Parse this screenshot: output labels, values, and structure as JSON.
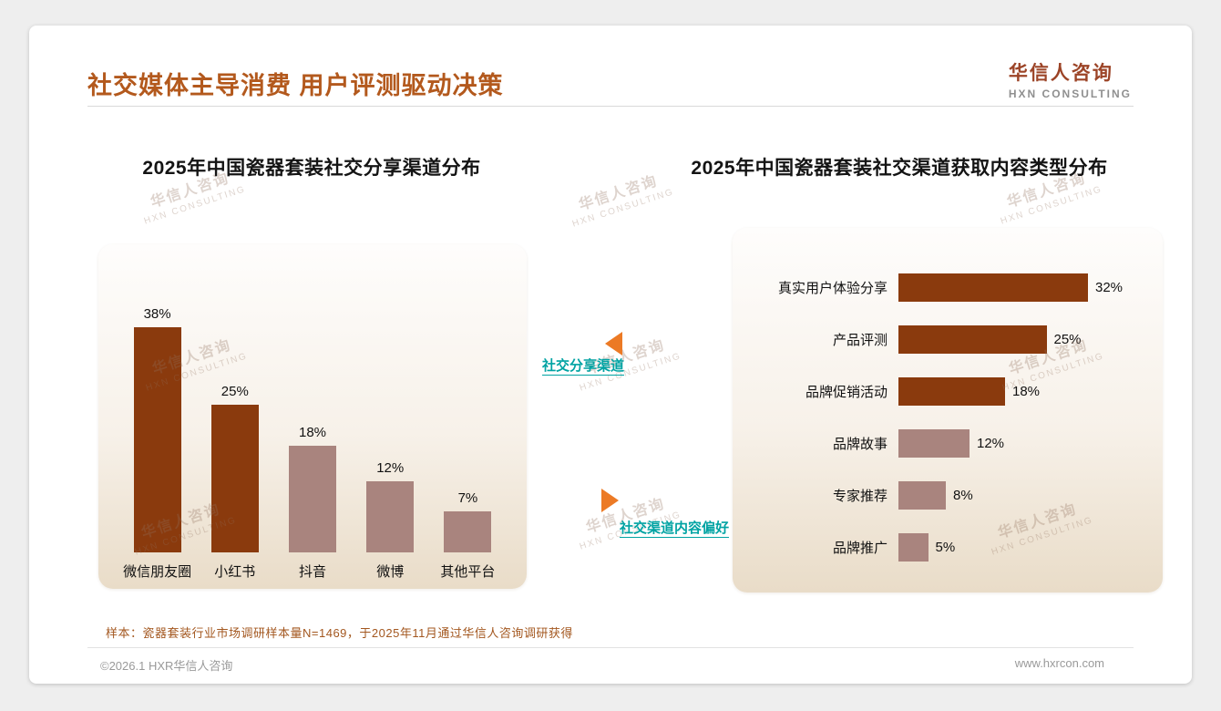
{
  "header": {
    "title": "社交媒体主导消费 用户评测驱动决策"
  },
  "logo": {
    "cn": "华信人咨询",
    "en": "HXN CONSULTING"
  },
  "chart_data": [
    {
      "type": "bar",
      "orientation": "vertical",
      "title": "2025年中国瓷器套装社交分享渠道分布",
      "categories": [
        "微信朋友圈",
        "小红书",
        "抖音",
        "微博",
        "其他平台"
      ],
      "values": [
        38,
        25,
        18,
        12,
        7
      ],
      "value_labels": [
        "38%",
        "25%",
        "18%",
        "12%",
        "7%"
      ],
      "ylim": [
        0,
        40
      ],
      "grid": false,
      "legend": "none",
      "bar_colors": [
        "#8a3a0d",
        "#8a3a0d",
        "#a9847e",
        "#a9847e",
        "#a9847e"
      ]
    },
    {
      "type": "bar",
      "orientation": "horizontal",
      "title": "2025年中国瓷器套装社交渠道获取内容类型分布",
      "categories": [
        "真实用户体验分享",
        "产品评测",
        "品牌促销活动",
        "品牌故事",
        "专家推荐",
        "品牌推广"
      ],
      "values": [
        32,
        25,
        18,
        12,
        8,
        5
      ],
      "value_labels": [
        "32%",
        "25%",
        "18%",
        "12%",
        "8%",
        "5%"
      ],
      "xlim": [
        0,
        35
      ],
      "grid": false,
      "legend": "none",
      "bar_colors": [
        "#8a3a0d",
        "#8a3a0d",
        "#8a3a0d",
        "#a9847e",
        "#a9847e",
        "#a9847e"
      ]
    }
  ],
  "annotations": {
    "share_channel_label": "社交分享渠道",
    "content_pref_label": "社交渠道内容偏好"
  },
  "footnote": {
    "text": "样本：瓷器套装行业市场调研样本量N=1469，于2025年11月通过华信人咨询调研获得"
  },
  "footer": {
    "copyright": "©2026.1 HXR华信人咨询",
    "website": "www.hxrcon.com"
  },
  "watermark": {
    "line1": "华信人咨询",
    "line2": "HXN CONSULTING"
  },
  "colors": {
    "primary_brown": "#8a3a0d",
    "secondary_mauve": "#a9847e",
    "accent_orange": "#ec7a25",
    "teal_label": "#00a3a3",
    "title_brown": "#b3591d"
  }
}
